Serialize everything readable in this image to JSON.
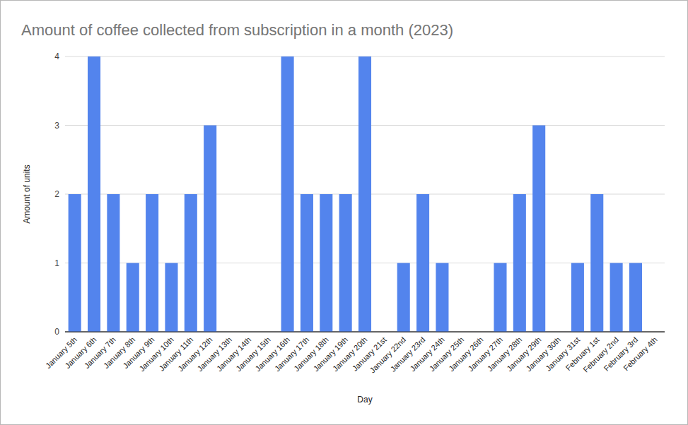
{
  "chart_data": {
    "type": "bar",
    "title": "Amount of coffee collected from subscription in a month (2023)",
    "x_label": "Day",
    "y_label": "Amount of units",
    "categories": [
      "January 5th",
      "January 6th",
      "January 7th",
      "January 8th",
      "January 9th",
      "January 10th",
      "January 11th",
      "January 12th",
      "January 13th",
      "January 14th",
      "January 15th",
      "January 16th",
      "January 17th",
      "January 18th",
      "January 19th",
      "January 20th",
      "January 21st",
      "January 22nd",
      "January 23rd",
      "January 24th",
      "January 25th",
      "January 26th",
      "January 27th",
      "January 28th",
      "January 29th",
      "January 30th",
      "January 31st",
      "February 1st",
      "February 2nd",
      "February 3rd",
      "February 4th"
    ],
    "values": [
      2,
      4,
      2,
      1,
      2,
      1,
      2,
      3,
      0,
      0,
      0,
      4,
      2,
      2,
      2,
      4,
      0,
      1,
      2,
      1,
      0,
      0,
      1,
      2,
      3,
      0,
      1,
      2,
      1,
      1,
      0
    ],
    "color": "#5384ed",
    "ylim": [
      0,
      4
    ],
    "yticks": [
      0,
      1,
      2,
      3,
      4
    ],
    "grid": true
  }
}
